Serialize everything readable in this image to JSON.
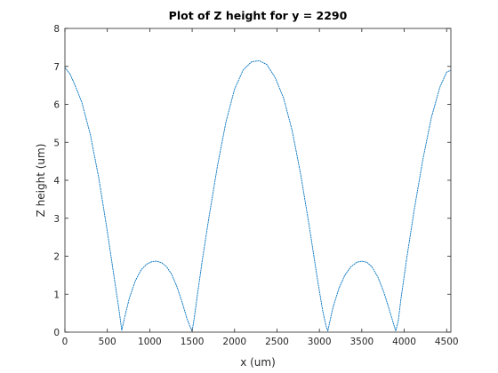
{
  "chart_data": {
    "type": "line",
    "title": "Plot of Z height for y = 2290",
    "xlabel": "x (um)",
    "ylabel": "Z height (um)",
    "xlim": [
      0,
      4550
    ],
    "ylim": [
      0,
      8
    ],
    "xticks": [
      0,
      500,
      1000,
      1500,
      2000,
      2500,
      3000,
      3500,
      4000,
      4500
    ],
    "yticks": [
      0,
      1,
      2,
      3,
      4,
      5,
      6,
      7,
      8
    ],
    "grid": false,
    "line_color": "#0072bd",
    "series": [
      {
        "x": [
          0,
          60,
          120,
          200,
          300,
          400,
          500,
          580,
          640,
          670,
          700,
          760,
          830,
          900,
          970,
          1030,
          1080,
          1140,
          1200,
          1260,
          1320,
          1380,
          1440,
          1480,
          1500,
          1520,
          1560,
          1620,
          1700,
          1800,
          1900,
          2000,
          2100,
          2200,
          2290,
          2380,
          2480,
          2580,
          2680,
          2780,
          2880,
          2980,
          3040,
          3080,
          3100,
          3120,
          3160,
          3230,
          3300,
          3370,
          3440,
          3500,
          3560,
          3620,
          3690,
          3760,
          3830,
          3870,
          3900,
          3930,
          3960,
          4030,
          4120,
          4220,
          4320,
          4420,
          4500,
          4550
        ],
        "y": [
          6.97,
          6.8,
          6.5,
          6.05,
          5.2,
          4.05,
          2.65,
          1.45,
          0.55,
          0.05,
          0.35,
          0.9,
          1.35,
          1.65,
          1.8,
          1.86,
          1.87,
          1.83,
          1.72,
          1.52,
          1.2,
          0.8,
          0.35,
          0.12,
          0.03,
          0.3,
          0.95,
          1.9,
          3.05,
          4.4,
          5.55,
          6.4,
          6.9,
          7.12,
          7.15,
          7.05,
          6.7,
          6.15,
          5.3,
          4.15,
          2.8,
          1.35,
          0.55,
          0.15,
          0.03,
          0.25,
          0.65,
          1.15,
          1.5,
          1.72,
          1.84,
          1.87,
          1.84,
          1.72,
          1.45,
          1.05,
          0.55,
          0.25,
          0.03,
          0.3,
          0.85,
          1.95,
          3.25,
          4.55,
          5.65,
          6.45,
          6.85,
          6.9
        ]
      }
    ]
  }
}
